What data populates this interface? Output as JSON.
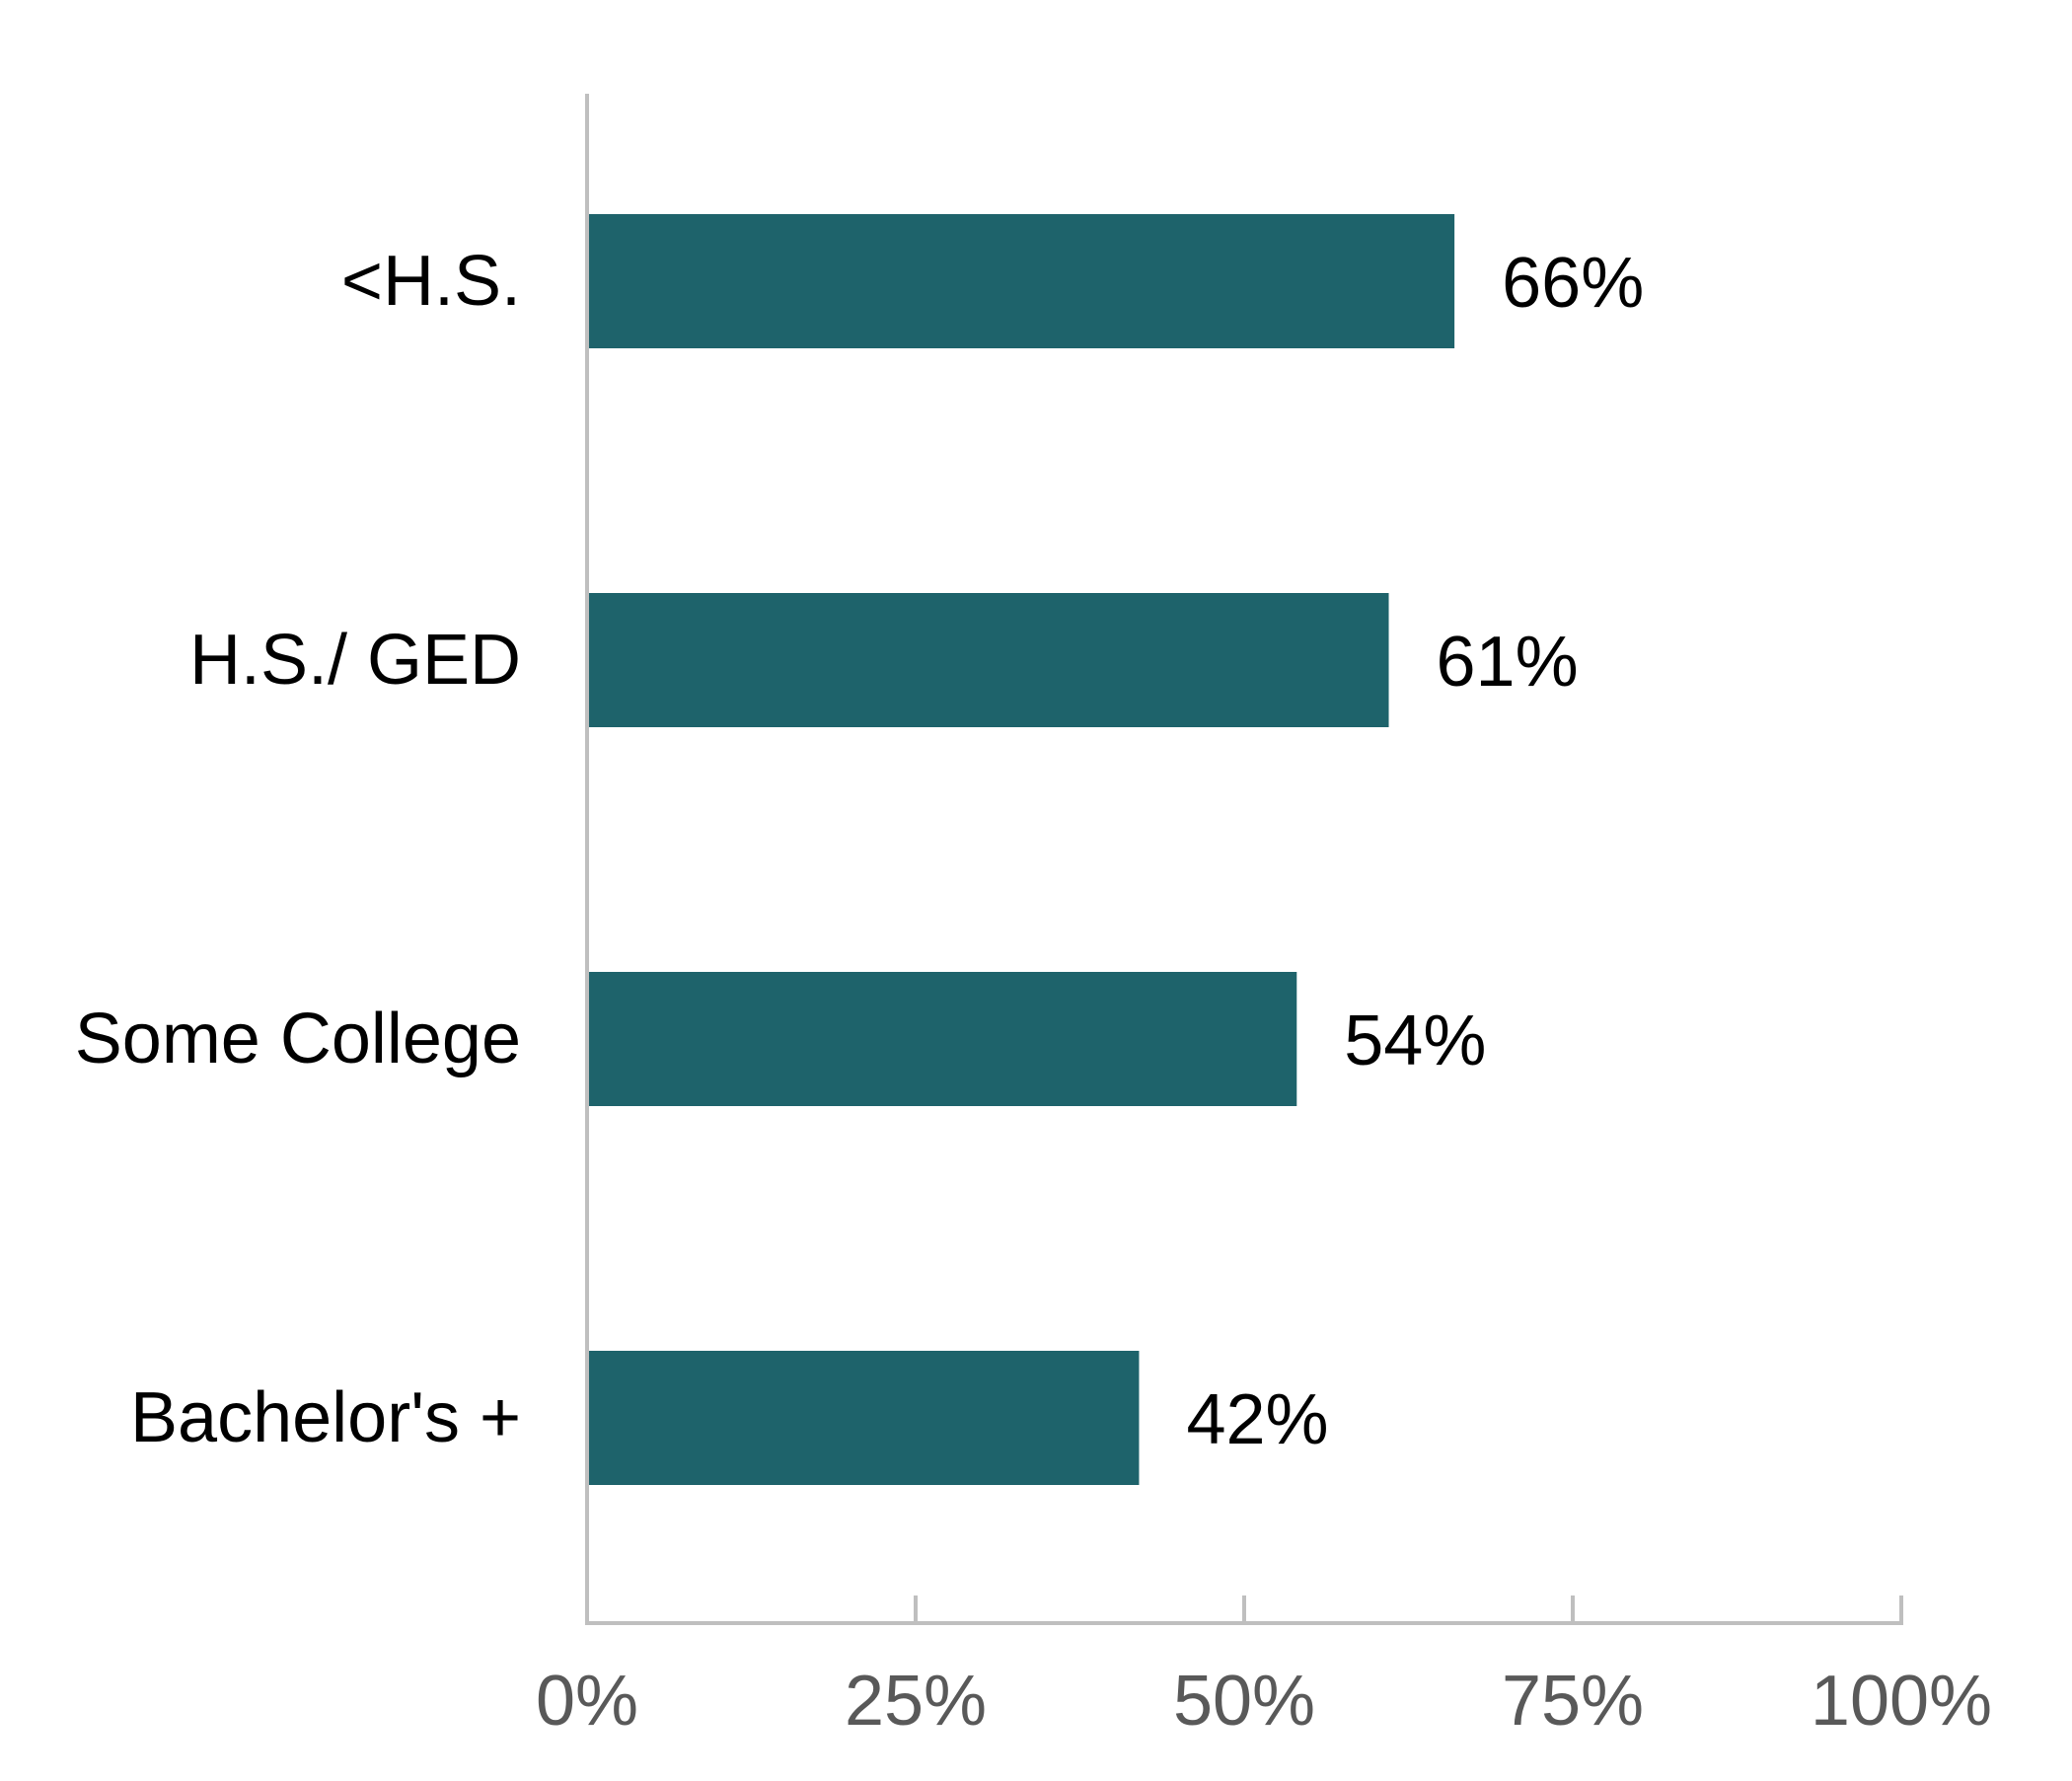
{
  "chart_data": {
    "type": "bar",
    "orientation": "horizontal",
    "categories": [
      "<H.S.",
      "H.S./ GED",
      "Some College",
      "Bachelor's +"
    ],
    "values": [
      66,
      61,
      54,
      42
    ],
    "data_labels": [
      "66%",
      "61%",
      "54%",
      "42%"
    ],
    "xlim": [
      0,
      100
    ],
    "xticks": [
      0,
      25,
      50,
      75,
      100
    ],
    "xtick_labels": [
      "0%",
      "25%",
      "50%",
      "75%",
      "100%"
    ],
    "title": "",
    "xlabel": "",
    "ylabel": "",
    "grid": false,
    "legend": "none",
    "colors": {
      "bar": "#1E636B",
      "axis": "#BFBFBF",
      "tick_text": "#595959",
      "label_text": "#000000"
    }
  }
}
